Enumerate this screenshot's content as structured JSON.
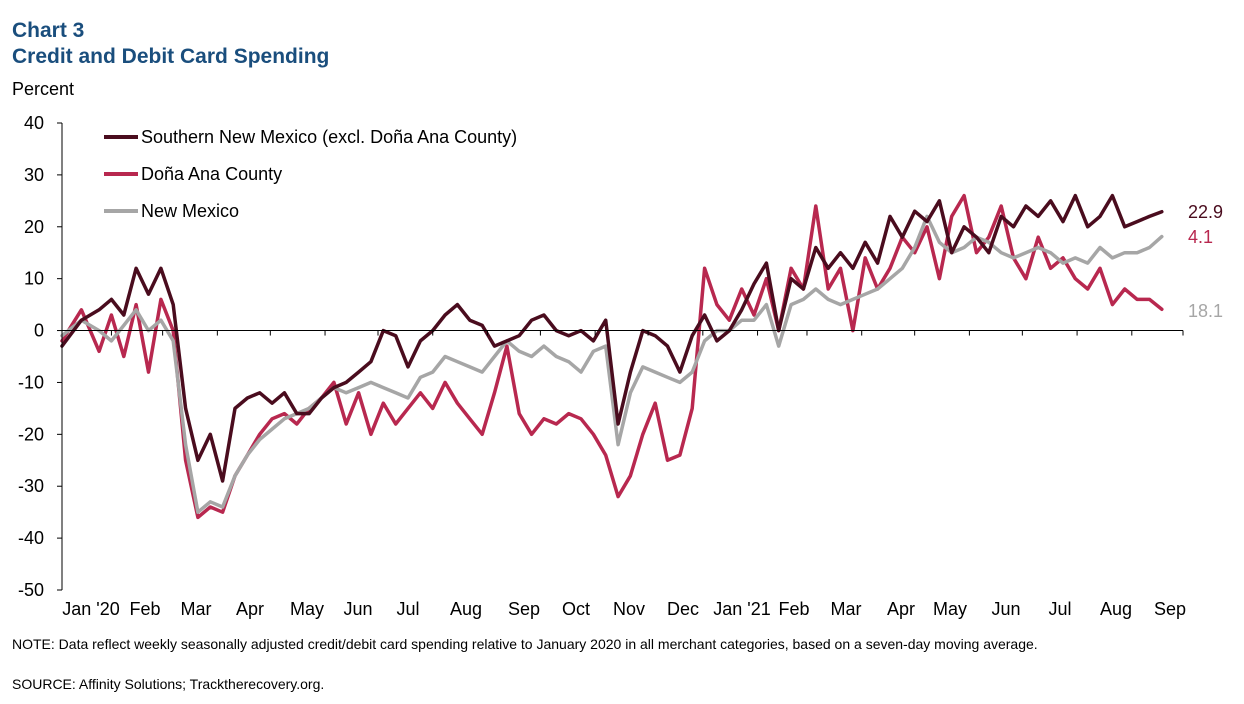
{
  "chart_data": {
    "type": "line",
    "title_prefix": "Chart 3",
    "title": "Credit and Debit Card Spending",
    "ylabel": "Percent",
    "ylim": [
      -50,
      40
    ],
    "yticks": [
      40,
      30,
      20,
      10,
      0,
      -10,
      -20,
      -30,
      -40,
      -50
    ],
    "x_start": "2020-01-04",
    "x_end": "2021-09-30",
    "xtick_labels": [
      "Jan '20",
      "Feb",
      "Mar",
      "Apr",
      "May",
      "Jun",
      "Jul",
      "Aug",
      "Sep",
      "Oct",
      "Nov",
      "Dec",
      "Jan '21",
      "Feb",
      "Mar",
      "Apr",
      "May",
      "Jun",
      "Jul",
      "Aug",
      "Sep"
    ],
    "legend": "top-left",
    "grid": false,
    "series": [
      {
        "name": "Southern New Mexico (excl. Doña Ana County)",
        "color": "#4a0c1e",
        "end_label": "22.9",
        "points": [
          [
            "2020-01-04",
            -3
          ],
          [
            "2020-01-15",
            2
          ],
          [
            "2020-01-25",
            4
          ],
          [
            "2020-02-01",
            6
          ],
          [
            "2020-02-08",
            3
          ],
          [
            "2020-02-15",
            12
          ],
          [
            "2020-02-22",
            7
          ],
          [
            "2020-02-29",
            12
          ],
          [
            "2020-03-07",
            5
          ],
          [
            "2020-03-14",
            -15
          ],
          [
            "2020-03-21",
            -25
          ],
          [
            "2020-03-28",
            -20
          ],
          [
            "2020-04-04",
            -29
          ],
          [
            "2020-04-11",
            -15
          ],
          [
            "2020-04-18",
            -13
          ],
          [
            "2020-04-25",
            -12
          ],
          [
            "2020-05-02",
            -14
          ],
          [
            "2020-05-09",
            -12
          ],
          [
            "2020-05-16",
            -16
          ],
          [
            "2020-05-23",
            -16
          ],
          [
            "2020-05-30",
            -13
          ],
          [
            "2020-06-06",
            -11
          ],
          [
            "2020-06-13",
            -10
          ],
          [
            "2020-06-20",
            -8
          ],
          [
            "2020-06-27",
            -6
          ],
          [
            "2020-07-04",
            0
          ],
          [
            "2020-07-11",
            -1
          ],
          [
            "2020-07-18",
            -7
          ],
          [
            "2020-07-25",
            -2
          ],
          [
            "2020-08-01",
            0
          ],
          [
            "2020-08-08",
            3
          ],
          [
            "2020-08-15",
            5
          ],
          [
            "2020-08-22",
            2
          ],
          [
            "2020-08-29",
            1
          ],
          [
            "2020-09-05",
            -3
          ],
          [
            "2020-09-12",
            -2
          ],
          [
            "2020-09-19",
            -1
          ],
          [
            "2020-09-26",
            2
          ],
          [
            "2020-10-03",
            3
          ],
          [
            "2020-10-10",
            0
          ],
          [
            "2020-10-17",
            -1
          ],
          [
            "2020-10-24",
            0
          ],
          [
            "2020-10-31",
            -2
          ],
          [
            "2020-11-07",
            2
          ],
          [
            "2020-11-14",
            -18
          ],
          [
            "2020-11-21",
            -8
          ],
          [
            "2020-11-28",
            0
          ],
          [
            "2020-12-05",
            -1
          ],
          [
            "2020-12-12",
            -3
          ],
          [
            "2020-12-19",
            -8
          ],
          [
            "2020-12-26",
            -1
          ],
          [
            "2021-01-02",
            3
          ],
          [
            "2021-01-09",
            -2
          ],
          [
            "2021-01-16",
            0
          ],
          [
            "2021-01-23",
            4
          ],
          [
            "2021-01-30",
            9
          ],
          [
            "2021-02-06",
            13
          ],
          [
            "2021-02-13",
            0
          ],
          [
            "2021-02-20",
            10
          ],
          [
            "2021-02-27",
            8
          ],
          [
            "2021-03-06",
            16
          ],
          [
            "2021-03-13",
            12
          ],
          [
            "2021-03-20",
            15
          ],
          [
            "2021-03-27",
            12
          ],
          [
            "2021-04-03",
            17
          ],
          [
            "2021-04-10",
            13
          ],
          [
            "2021-04-17",
            22
          ],
          [
            "2021-04-24",
            18
          ],
          [
            "2021-05-01",
            23
          ],
          [
            "2021-05-08",
            21
          ],
          [
            "2021-05-15",
            25
          ],
          [
            "2021-05-22",
            15
          ],
          [
            "2021-05-29",
            20
          ],
          [
            "2021-06-05",
            18
          ],
          [
            "2021-06-12",
            15
          ],
          [
            "2021-06-19",
            22
          ],
          [
            "2021-06-26",
            20
          ],
          [
            "2021-07-03",
            24
          ],
          [
            "2021-07-10",
            22
          ],
          [
            "2021-07-17",
            25
          ],
          [
            "2021-07-24",
            21
          ],
          [
            "2021-07-31",
            26
          ],
          [
            "2021-08-07",
            20
          ],
          [
            "2021-08-14",
            22
          ],
          [
            "2021-08-21",
            26
          ],
          [
            "2021-08-28",
            20
          ],
          [
            "2021-09-04",
            21
          ],
          [
            "2021-09-11",
            22
          ],
          [
            "2021-09-18",
            22.9
          ]
        ]
      },
      {
        "name": "Doña Ana County",
        "color": "#b8284f",
        "end_label": "4.1",
        "points": [
          [
            "2020-01-04",
            -2
          ],
          [
            "2020-01-15",
            4
          ],
          [
            "2020-01-25",
            -4
          ],
          [
            "2020-02-01",
            3
          ],
          [
            "2020-02-08",
            -5
          ],
          [
            "2020-02-15",
            5
          ],
          [
            "2020-02-22",
            -8
          ],
          [
            "2020-02-29",
            6
          ],
          [
            "2020-03-07",
            0
          ],
          [
            "2020-03-14",
            -25
          ],
          [
            "2020-03-21",
            -36
          ],
          [
            "2020-03-28",
            -34
          ],
          [
            "2020-04-04",
            -35
          ],
          [
            "2020-04-11",
            -28
          ],
          [
            "2020-04-18",
            -24
          ],
          [
            "2020-04-25",
            -20
          ],
          [
            "2020-05-02",
            -17
          ],
          [
            "2020-05-09",
            -16
          ],
          [
            "2020-05-16",
            -18
          ],
          [
            "2020-05-23",
            -15
          ],
          [
            "2020-05-30",
            -13
          ],
          [
            "2020-06-06",
            -10
          ],
          [
            "2020-06-13",
            -18
          ],
          [
            "2020-06-20",
            -12
          ],
          [
            "2020-06-27",
            -20
          ],
          [
            "2020-07-04",
            -14
          ],
          [
            "2020-07-11",
            -18
          ],
          [
            "2020-07-18",
            -15
          ],
          [
            "2020-07-25",
            -12
          ],
          [
            "2020-08-01",
            -15
          ],
          [
            "2020-08-08",
            -10
          ],
          [
            "2020-08-15",
            -14
          ],
          [
            "2020-08-22",
            -17
          ],
          [
            "2020-08-29",
            -20
          ],
          [
            "2020-09-05",
            -12
          ],
          [
            "2020-09-12",
            -3
          ],
          [
            "2020-09-19",
            -16
          ],
          [
            "2020-09-26",
            -20
          ],
          [
            "2020-10-03",
            -17
          ],
          [
            "2020-10-10",
            -18
          ],
          [
            "2020-10-17",
            -16
          ],
          [
            "2020-10-24",
            -17
          ],
          [
            "2020-10-31",
            -20
          ],
          [
            "2020-11-07",
            -24
          ],
          [
            "2020-11-14",
            -32
          ],
          [
            "2020-11-21",
            -28
          ],
          [
            "2020-11-28",
            -20
          ],
          [
            "2020-12-05",
            -14
          ],
          [
            "2020-12-12",
            -25
          ],
          [
            "2020-12-19",
            -24
          ],
          [
            "2020-12-26",
            -15
          ],
          [
            "2021-01-02",
            12
          ],
          [
            "2021-01-09",
            5
          ],
          [
            "2021-01-16",
            2
          ],
          [
            "2021-01-23",
            8
          ],
          [
            "2021-01-30",
            3
          ],
          [
            "2021-02-06",
            10
          ],
          [
            "2021-02-13",
            0
          ],
          [
            "2021-02-20",
            12
          ],
          [
            "2021-02-27",
            8
          ],
          [
            "2021-03-06",
            24
          ],
          [
            "2021-03-13",
            8
          ],
          [
            "2021-03-20",
            12
          ],
          [
            "2021-03-27",
            0
          ],
          [
            "2021-04-03",
            14
          ],
          [
            "2021-04-10",
            8
          ],
          [
            "2021-04-17",
            12
          ],
          [
            "2021-04-24",
            18
          ],
          [
            "2021-05-01",
            15
          ],
          [
            "2021-05-08",
            20
          ],
          [
            "2021-05-15",
            10
          ],
          [
            "2021-05-22",
            22
          ],
          [
            "2021-05-29",
            26
          ],
          [
            "2021-06-05",
            15
          ],
          [
            "2021-06-12",
            18
          ],
          [
            "2021-06-19",
            24
          ],
          [
            "2021-06-26",
            14
          ],
          [
            "2021-07-03",
            10
          ],
          [
            "2021-07-10",
            18
          ],
          [
            "2021-07-17",
            12
          ],
          [
            "2021-07-24",
            14
          ],
          [
            "2021-07-31",
            10
          ],
          [
            "2021-08-07",
            8
          ],
          [
            "2021-08-14",
            12
          ],
          [
            "2021-08-21",
            5
          ],
          [
            "2021-08-28",
            8
          ],
          [
            "2021-09-04",
            6
          ],
          [
            "2021-09-11",
            6
          ],
          [
            "2021-09-18",
            4.1
          ]
        ]
      },
      {
        "name": "New Mexico",
        "color": "#a6a6a6",
        "end_label": "18.1",
        "points": [
          [
            "2020-01-04",
            -1
          ],
          [
            "2020-01-15",
            2
          ],
          [
            "2020-01-25",
            0
          ],
          [
            "2020-02-01",
            -2
          ],
          [
            "2020-02-08",
            1
          ],
          [
            "2020-02-15",
            4
          ],
          [
            "2020-02-22",
            0
          ],
          [
            "2020-02-29",
            2
          ],
          [
            "2020-03-07",
            -2
          ],
          [
            "2020-03-14",
            -22
          ],
          [
            "2020-03-21",
            -35
          ],
          [
            "2020-03-28",
            -33
          ],
          [
            "2020-04-04",
            -34
          ],
          [
            "2020-04-11",
            -28
          ],
          [
            "2020-04-18",
            -24
          ],
          [
            "2020-04-25",
            -21
          ],
          [
            "2020-05-02",
            -19
          ],
          [
            "2020-05-09",
            -17
          ],
          [
            "2020-05-16",
            -16
          ],
          [
            "2020-05-23",
            -15
          ],
          [
            "2020-05-30",
            -13
          ],
          [
            "2020-06-06",
            -11
          ],
          [
            "2020-06-13",
            -12
          ],
          [
            "2020-06-20",
            -11
          ],
          [
            "2020-06-27",
            -10
          ],
          [
            "2020-07-04",
            -11
          ],
          [
            "2020-07-11",
            -12
          ],
          [
            "2020-07-18",
            -13
          ],
          [
            "2020-07-25",
            -9
          ],
          [
            "2020-08-01",
            -8
          ],
          [
            "2020-08-08",
            -5
          ],
          [
            "2020-08-15",
            -6
          ],
          [
            "2020-08-22",
            -7
          ],
          [
            "2020-08-29",
            -8
          ],
          [
            "2020-09-05",
            -5
          ],
          [
            "2020-09-12",
            -2
          ],
          [
            "2020-09-19",
            -4
          ],
          [
            "2020-09-26",
            -5
          ],
          [
            "2020-10-03",
            -3
          ],
          [
            "2020-10-10",
            -5
          ],
          [
            "2020-10-17",
            -6
          ],
          [
            "2020-10-24",
            -8
          ],
          [
            "2020-10-31",
            -4
          ],
          [
            "2020-11-07",
            -3
          ],
          [
            "2020-11-14",
            -22
          ],
          [
            "2020-11-21",
            -12
          ],
          [
            "2020-11-28",
            -7
          ],
          [
            "2020-12-05",
            -8
          ],
          [
            "2020-12-12",
            -9
          ],
          [
            "2020-12-19",
            -10
          ],
          [
            "2020-12-26",
            -8
          ],
          [
            "2021-01-02",
            -2
          ],
          [
            "2021-01-09",
            0
          ],
          [
            "2021-01-16",
            0
          ],
          [
            "2021-01-23",
            2
          ],
          [
            "2021-01-30",
            2
          ],
          [
            "2021-02-06",
            5
          ],
          [
            "2021-02-13",
            -3
          ],
          [
            "2021-02-20",
            5
          ],
          [
            "2021-02-27",
            6
          ],
          [
            "2021-03-06",
            8
          ],
          [
            "2021-03-13",
            6
          ],
          [
            "2021-03-20",
            5
          ],
          [
            "2021-03-27",
            6
          ],
          [
            "2021-04-03",
            7
          ],
          [
            "2021-04-10",
            8
          ],
          [
            "2021-04-17",
            10
          ],
          [
            "2021-04-24",
            12
          ],
          [
            "2021-05-01",
            16
          ],
          [
            "2021-05-08",
            22
          ],
          [
            "2021-05-15",
            17
          ],
          [
            "2021-05-22",
            15
          ],
          [
            "2021-05-29",
            16
          ],
          [
            "2021-06-05",
            18
          ],
          [
            "2021-06-12",
            17
          ],
          [
            "2021-06-19",
            15
          ],
          [
            "2021-06-26",
            14
          ],
          [
            "2021-07-03",
            15
          ],
          [
            "2021-07-10",
            16
          ],
          [
            "2021-07-17",
            15
          ],
          [
            "2021-07-24",
            13
          ],
          [
            "2021-07-31",
            14
          ],
          [
            "2021-08-07",
            13
          ],
          [
            "2021-08-14",
            16
          ],
          [
            "2021-08-21",
            14
          ],
          [
            "2021-08-28",
            15
          ],
          [
            "2021-09-04",
            15
          ],
          [
            "2021-09-11",
            16
          ],
          [
            "2021-09-18",
            18.1
          ]
        ]
      }
    ]
  },
  "notes": {
    "note": "NOTE:  Data reflect weekly seasonally adjusted credit/debit card spending relative to January 2020 in all merchant categories, based on a seven-day moving average.",
    "source": "SOURCE:  Affinity Solutions; Tracktherecovery.org."
  }
}
